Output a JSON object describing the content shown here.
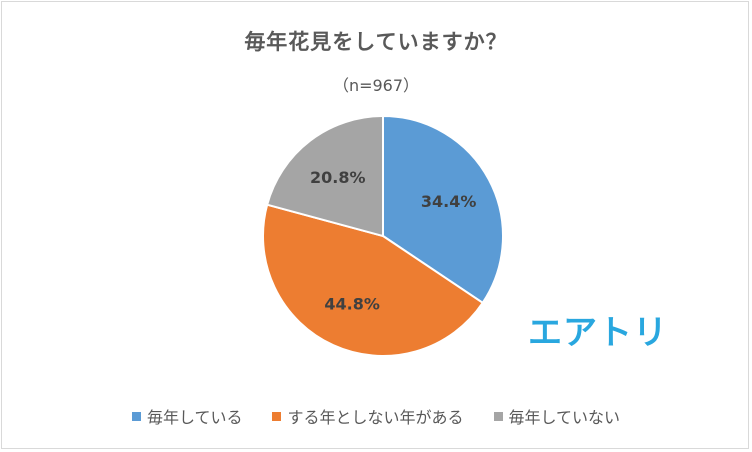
{
  "chart_data": {
    "type": "pie",
    "title": "毎年花見をしていますか？",
    "subtitle": "（n=967）",
    "categories": [
      "毎年している",
      "する年としない年がある",
      "毎年していない"
    ],
    "values": [
      34.4,
      44.8,
      20.8
    ],
    "labels": [
      "34.4%",
      "44.8%",
      "20.8%"
    ],
    "colors": [
      "#5b9bd5",
      "#ed7d31",
      "#a5a5a5"
    ],
    "legend_position": "bottom",
    "start_angle": "12 o'clock",
    "direction": "clockwise"
  },
  "logo": {
    "text": "エアトリ",
    "color": "#29a7df"
  }
}
